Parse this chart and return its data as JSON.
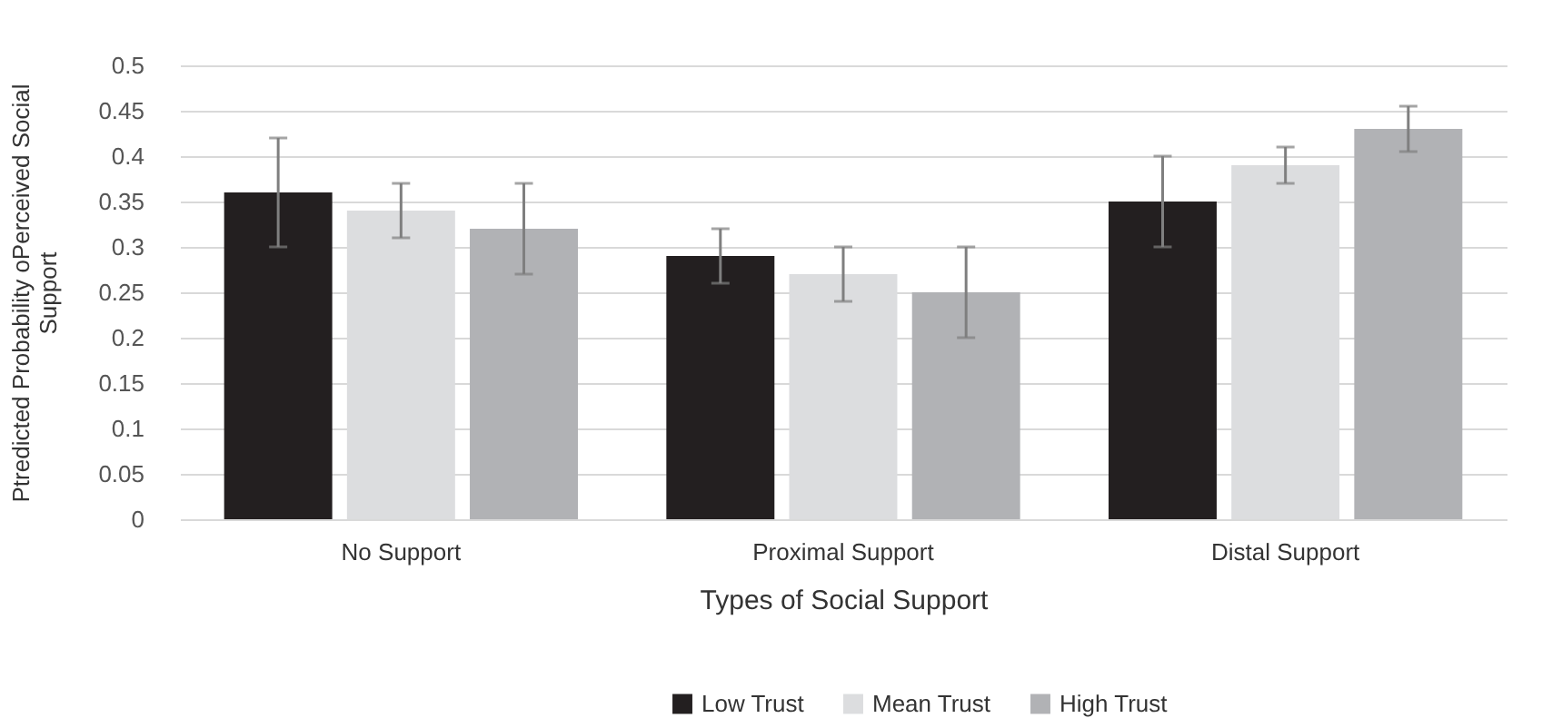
{
  "chart_data": {
    "type": "bar",
    "xlabel": "Types of Social Support",
    "ylabel": "Ptredicted Probability oPerceived Social\nSupport",
    "categories": [
      "No Support",
      "Proximal Support",
      "Distal Support"
    ],
    "series": [
      {
        "name": "Low Trust",
        "color": "#231f20",
        "values": [
          0.36,
          0.29,
          0.35
        ],
        "errors": [
          [
            0.3,
            0.42
          ],
          [
            0.26,
            0.32
          ],
          [
            0.3,
            0.4
          ]
        ]
      },
      {
        "name": "Mean Trust",
        "color": "#dcdddf",
        "values": [
          0.34,
          0.27,
          0.39
        ],
        "errors": [
          [
            0.31,
            0.37
          ],
          [
            0.24,
            0.3
          ],
          [
            0.37,
            0.41
          ]
        ]
      },
      {
        "name": "High Trust",
        "color": "#b1b2b5",
        "values": [
          0.32,
          0.25,
          0.43
        ],
        "errors": [
          [
            0.27,
            0.37
          ],
          [
            0.2,
            0.3
          ],
          [
            0.405,
            0.455
          ]
        ]
      }
    ],
    "ylim": [
      0,
      0.5
    ],
    "yticks": [
      0,
      0.05,
      0.1,
      0.15,
      0.2,
      0.25,
      0.3,
      0.35,
      0.4,
      0.45,
      0.5
    ],
    "grid": "y",
    "legend": "bottom"
  }
}
